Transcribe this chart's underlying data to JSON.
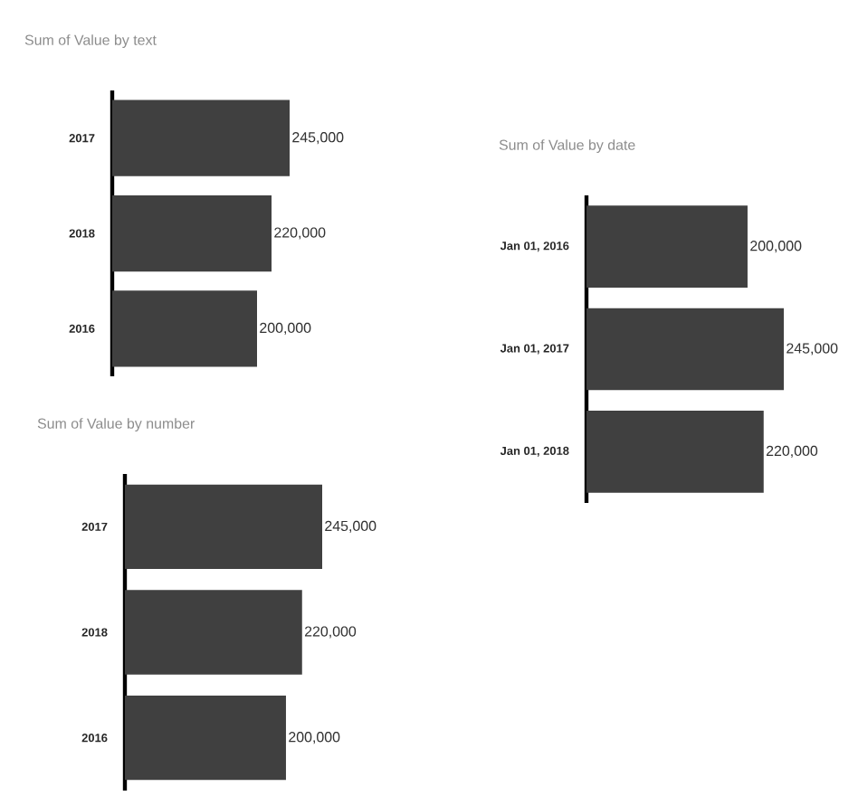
{
  "chart_data": [
    {
      "type": "bar",
      "orientation": "horizontal",
      "title": "Sum of Value by text",
      "categories": [
        "2017",
        "2018",
        "2016"
      ],
      "values": [
        245000,
        220000,
        200000
      ],
      "value_labels": [
        "245,000",
        "220,000",
        "200,000"
      ],
      "color": "#404040",
      "tick_labels": "y"
    },
    {
      "type": "bar",
      "orientation": "horizontal",
      "title": "Sum of Value by date",
      "categories": [
        "Jan 01, 2016",
        "Jan 01, 2017",
        "Jan 01, 2018"
      ],
      "values": [
        200000,
        245000,
        220000
      ],
      "value_labels": [
        "200,000",
        "245,000",
        "220,000"
      ],
      "color": "#404040",
      "tick_labels": "y"
    },
    {
      "type": "bar",
      "orientation": "horizontal",
      "title": "Sum of Value by number",
      "categories": [
        "2017",
        "2018",
        "2016"
      ],
      "values": [
        245000,
        220000,
        200000
      ],
      "value_labels": [
        "245,000",
        "220,000",
        "200,000"
      ],
      "color": "#404040",
      "tick_labels": "y"
    }
  ]
}
